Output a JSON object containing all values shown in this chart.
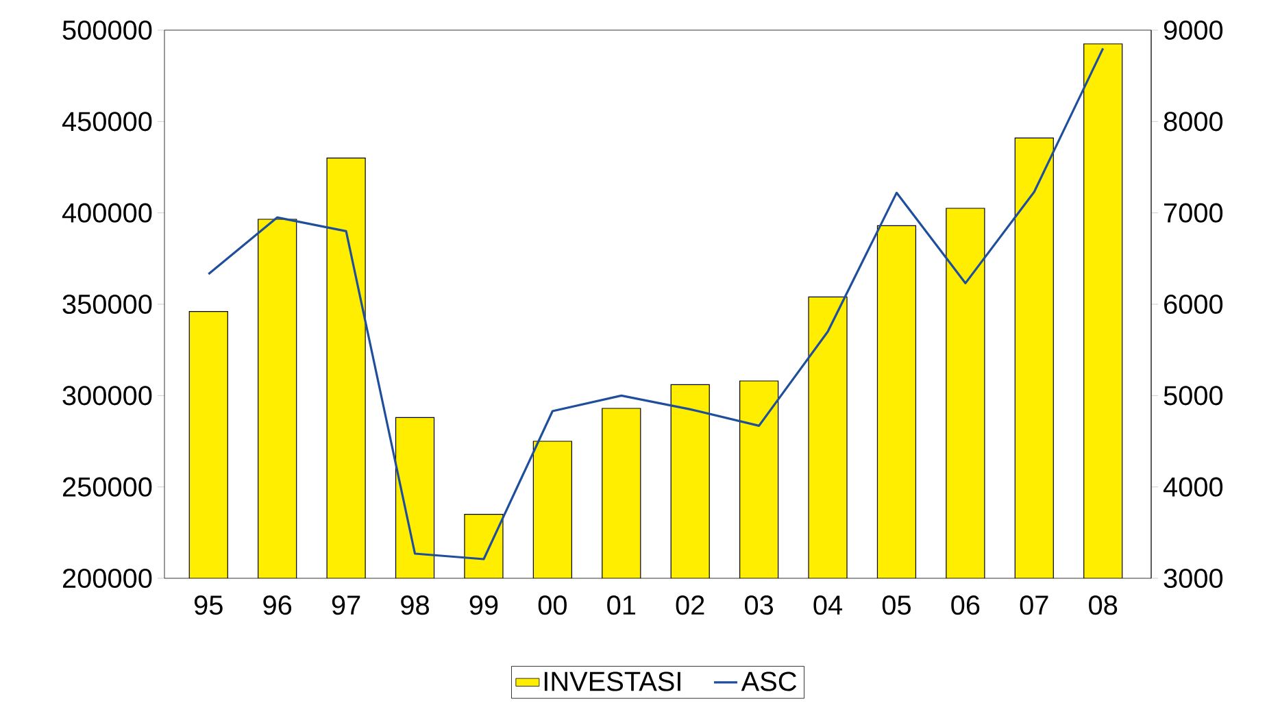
{
  "chart_data": {
    "type": "bar",
    "categories": [
      "95",
      "96",
      "97",
      "98",
      "99",
      "00",
      "01",
      "02",
      "03",
      "04",
      "05",
      "06",
      "07",
      "08"
    ],
    "series": [
      {
        "name": "INVESTASI",
        "color": "#ffee00",
        "values": [
          346000,
          396500,
          430000,
          288000,
          235000,
          275000,
          293000,
          306000,
          308000,
          354000,
          393000,
          402500,
          441000,
          492500
        ]
      },
      {
        "name": "ASC",
        "type": "line",
        "axis": "y2",
        "color": "#1f4e9c",
        "values": [
          6330,
          6950,
          6800,
          3270,
          3210,
          4830,
          5000,
          4850,
          4670,
          5700,
          7220,
          6230,
          7230,
          8800
        ]
      }
    ],
    "ylim": [
      200000,
      500000
    ],
    "yticks": [
      200000,
      250000,
      300000,
      350000,
      400000,
      450000,
      500000
    ],
    "y2lim": [
      3000,
      9000
    ],
    "y2ticks": [
      3000,
      4000,
      5000,
      6000,
      7000,
      8000,
      9000
    ],
    "grid": false,
    "legend": "bottom"
  }
}
